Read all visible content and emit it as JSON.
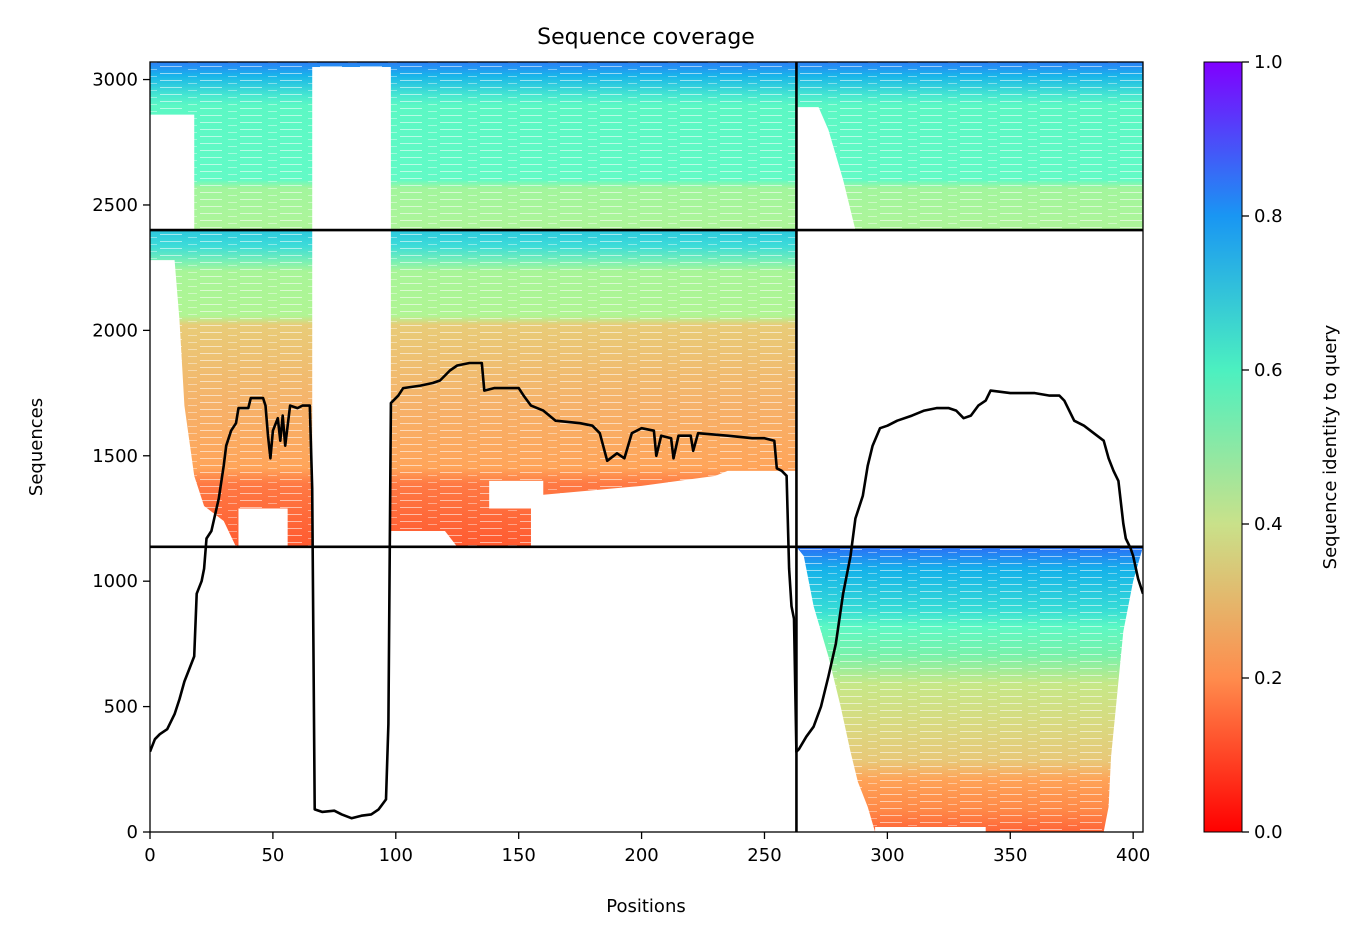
{
  "chart_data": {
    "type": "heatmap",
    "title": "Sequence coverage",
    "xlabel": "Positions",
    "ylabel": "Sequences",
    "xlim": [
      0,
      404
    ],
    "ylim": [
      0,
      3070
    ],
    "x_ticks": [
      0,
      50,
      100,
      150,
      200,
      250,
      300,
      350,
      400
    ],
    "y_ticks": [
      0,
      500,
      1000,
      1500,
      2000,
      2500,
      3000
    ],
    "colorbar": {
      "label": "Sequence identity to query",
      "range": [
        0,
        1
      ],
      "ticks": [
        "0.0",
        "0.2",
        "0.4",
        "0.6",
        "0.8",
        "1.0"
      ],
      "colormap": "rainbow_r",
      "stops": [
        "#ff0000",
        "#ff8c4d",
        "#c9e18a",
        "#4cf0c0",
        "#1996f3",
        "#8000ff"
      ]
    },
    "chain_boundaries": {
      "x": [
        263
      ],
      "y": [
        1137,
        2400
      ]
    },
    "blocks": [
      {
        "name": "chain A/B paired",
        "x": [
          0,
          263
        ],
        "y": [
          2400,
          3070
        ]
      },
      {
        "name": "chain C paired",
        "x": [
          263,
          404
        ],
        "y": [
          2400,
          3070
        ]
      },
      {
        "name": "chain A/B unpaired",
        "x": [
          0,
          263
        ],
        "y": [
          1137,
          2400
        ]
      },
      {
        "name": "chain C unpaired",
        "x": [
          263,
          404
        ],
        "y": [
          0,
          1137
        ]
      }
    ],
    "coverage_line": {
      "name": "coverage",
      "color": "#000000",
      "points": [
        [
          0,
          320
        ],
        [
          2,
          370
        ],
        [
          4,
          390
        ],
        [
          7,
          410
        ],
        [
          10,
          470
        ],
        [
          12,
          530
        ],
        [
          14,
          600
        ],
        [
          16,
          650
        ],
        [
          18,
          700
        ],
        [
          19,
          950
        ],
        [
          21,
          1000
        ],
        [
          22,
          1050
        ],
        [
          23,
          1170
        ],
        [
          25,
          1200
        ],
        [
          28,
          1330
        ],
        [
          30,
          1460
        ],
        [
          31,
          1540
        ],
        [
          33,
          1600
        ],
        [
          35,
          1630
        ],
        [
          36,
          1690
        ],
        [
          40,
          1690
        ],
        [
          41,
          1730
        ],
        [
          46,
          1730
        ],
        [
          47,
          1700
        ],
        [
          48,
          1580
        ],
        [
          49,
          1490
        ],
        [
          50,
          1600
        ],
        [
          52,
          1650
        ],
        [
          53,
          1560
        ],
        [
          54,
          1660
        ],
        [
          55,
          1540
        ],
        [
          57,
          1700
        ],
        [
          60,
          1690
        ],
        [
          62,
          1700
        ],
        [
          65,
          1700
        ],
        [
          66,
          1370
        ],
        [
          67,
          90
        ],
        [
          70,
          80
        ],
        [
          75,
          85
        ],
        [
          78,
          70
        ],
        [
          82,
          55
        ],
        [
          86,
          65
        ],
        [
          90,
          70
        ],
        [
          93,
          90
        ],
        [
          96,
          130
        ],
        [
          97,
          430
        ],
        [
          98,
          1710
        ],
        [
          101,
          1740
        ],
        [
          103,
          1770
        ],
        [
          110,
          1780
        ],
        [
          115,
          1790
        ],
        [
          118,
          1800
        ],
        [
          120,
          1820
        ],
        [
          122,
          1840
        ],
        [
          125,
          1860
        ],
        [
          130,
          1870
        ],
        [
          135,
          1870
        ],
        [
          136,
          1760
        ],
        [
          140,
          1770
        ],
        [
          150,
          1770
        ],
        [
          152,
          1740
        ],
        [
          155,
          1700
        ],
        [
          160,
          1680
        ],
        [
          165,
          1640
        ],
        [
          175,
          1630
        ],
        [
          180,
          1620
        ],
        [
          183,
          1590
        ],
        [
          186,
          1480
        ],
        [
          190,
          1510
        ],
        [
          193,
          1490
        ],
        [
          196,
          1590
        ],
        [
          200,
          1610
        ],
        [
          205,
          1600
        ],
        [
          206,
          1500
        ],
        [
          208,
          1580
        ],
        [
          212,
          1570
        ],
        [
          213,
          1490
        ],
        [
          215,
          1580
        ],
        [
          220,
          1580
        ],
        [
          221,
          1520
        ],
        [
          223,
          1590
        ],
        [
          235,
          1580
        ],
        [
          245,
          1570
        ],
        [
          250,
          1570
        ],
        [
          254,
          1560
        ],
        [
          255,
          1450
        ],
        [
          257,
          1440
        ],
        [
          259,
          1420
        ],
        [
          260,
          1050
        ],
        [
          261,
          900
        ],
        [
          262,
          850
        ],
        [
          263,
          320
        ],
        [
          264,
          330
        ],
        [
          267,
          380
        ],
        [
          270,
          420
        ],
        [
          273,
          500
        ],
        [
          276,
          620
        ],
        [
          279,
          750
        ],
        [
          282,
          950
        ],
        [
          285,
          1100
        ],
        [
          287,
          1250
        ],
        [
          290,
          1340
        ],
        [
          292,
          1460
        ],
        [
          294,
          1540
        ],
        [
          297,
          1610
        ],
        [
          300,
          1620
        ],
        [
          304,
          1640
        ],
        [
          310,
          1660
        ],
        [
          315,
          1680
        ],
        [
          320,
          1690
        ],
        [
          325,
          1690
        ],
        [
          328,
          1680
        ],
        [
          331,
          1650
        ],
        [
          334,
          1660
        ],
        [
          337,
          1700
        ],
        [
          340,
          1720
        ],
        [
          342,
          1760
        ],
        [
          350,
          1750
        ],
        [
          360,
          1750
        ],
        [
          366,
          1740
        ],
        [
          370,
          1740
        ],
        [
          372,
          1720
        ],
        [
          376,
          1640
        ],
        [
          380,
          1620
        ],
        [
          384,
          1590
        ],
        [
          388,
          1560
        ],
        [
          390,
          1490
        ],
        [
          392,
          1440
        ],
        [
          394,
          1400
        ],
        [
          396,
          1230
        ],
        [
          397,
          1170
        ],
        [
          399,
          1130
        ],
        [
          400,
          1100
        ],
        [
          402,
          1010
        ],
        [
          404,
          950
        ]
      ]
    }
  }
}
